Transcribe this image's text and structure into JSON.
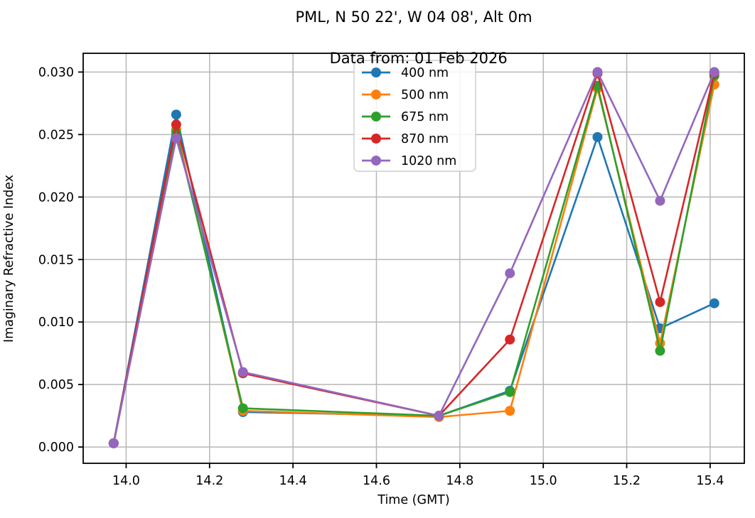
{
  "figure": {
    "title_line1": "PML, N 50 22', W 04 08', Alt 0m",
    "title_line2": "Data from: 01 Feb 2026",
    "xlabel": "Time (GMT)",
    "ylabel": "Imaginary Refractive Index"
  },
  "chart_data": {
    "type": "line",
    "title": "PML, N 50 22', W 04 08', Alt 0m",
    "subtitle": "Data from: 01 Feb 2026",
    "xlabel": "Time (GMT)",
    "ylabel": "Imaginary Refractive Index",
    "x": [
      13.97,
      14.12,
      14.28,
      14.75,
      14.92,
      15.13,
      15.28,
      15.41
    ],
    "series": [
      {
        "name": "400 nm",
        "color": "#1f77b4",
        "values": [
          0.0003,
          0.0266,
          0.0028,
          0.0025,
          0.0045,
          0.0248,
          0.0095,
          0.0115
        ]
      },
      {
        "name": "500 nm",
        "color": "#ff7f0e",
        "values": [
          0.0003,
          0.0254,
          0.0029,
          0.0024,
          0.0029,
          0.0287,
          0.0083,
          0.029
        ]
      },
      {
        "name": "675 nm",
        "color": "#2ca02c",
        "values": [
          0.0003,
          0.0252,
          0.0031,
          0.0025,
          0.0044,
          0.0289,
          0.0077,
          0.0297
        ]
      },
      {
        "name": "870 nm",
        "color": "#d62728",
        "values": [
          0.0003,
          0.0258,
          0.0059,
          0.0025,
          0.0086,
          0.0299,
          0.0116,
          0.0299
        ]
      },
      {
        "name": "1020 nm",
        "color": "#9467bd",
        "values": [
          0.0003,
          0.0247,
          0.006,
          0.0025,
          0.0139,
          0.03,
          0.0197,
          0.03
        ]
      }
    ],
    "xlim": [
      13.897,
      15.482
    ],
    "ylim": [
      -0.0013,
      0.0315
    ],
    "xticks": [
      14.0,
      14.2,
      14.4,
      14.6,
      14.8,
      15.0,
      15.2,
      15.4
    ],
    "xtick_labels": [
      "14.0",
      "14.2",
      "14.4",
      "14.6",
      "14.8",
      "15.0",
      "15.2",
      "15.4"
    ],
    "yticks": [
      0.0,
      0.005,
      0.01,
      0.015,
      0.02,
      0.025,
      0.03
    ],
    "ytick_labels": [
      "0.000",
      "0.005",
      "0.010",
      "0.015",
      "0.020",
      "0.025",
      "0.030"
    ],
    "grid": true,
    "legend": {
      "position": "upper-center",
      "entries": [
        "400 nm",
        "500 nm",
        "675 nm",
        "870 nm",
        "1020 nm"
      ]
    },
    "colors": {
      "grid": "#b7b7b7",
      "frame": "#000000",
      "text": "#000000",
      "legend_border": "#cccccc",
      "legend_bg": "#ffffff"
    }
  }
}
